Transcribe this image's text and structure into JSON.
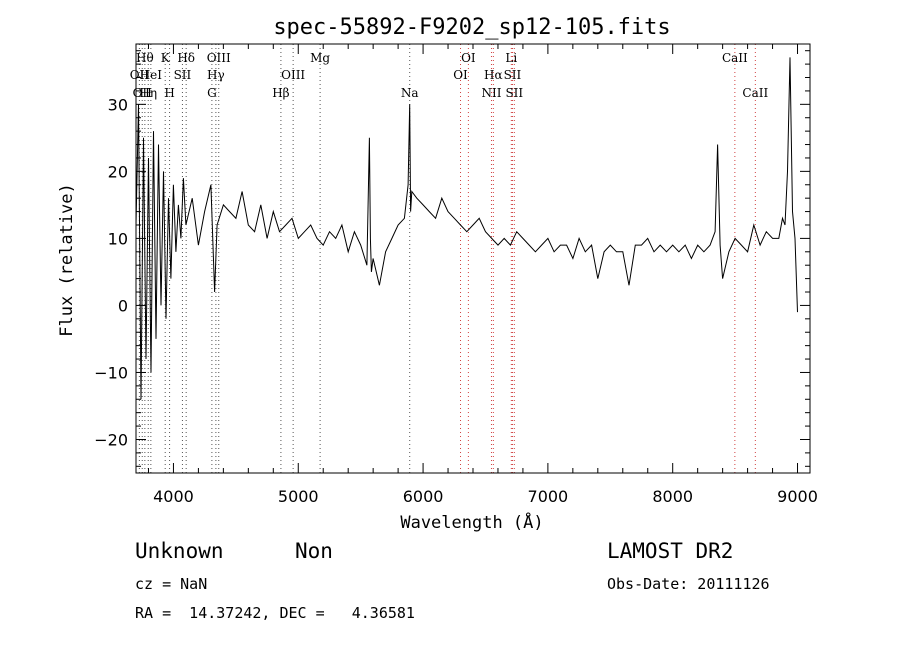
{
  "chart_data": {
    "type": "line",
    "title": "spec-55892-F9202_sp12-105.fits",
    "xlabel": "Wavelength (Å)",
    "ylabel": "Flux (relative)",
    "xlim": [
      3700,
      9100
    ],
    "ylim": [
      -25,
      39
    ],
    "x_ticks": [
      4000,
      5000,
      6000,
      7000,
      8000,
      9000
    ],
    "y_ticks": [
      -20,
      -10,
      0,
      10,
      20,
      30
    ],
    "grid": false,
    "series": [
      {
        "x": [
          3700,
          3720,
          3740,
          3760,
          3780,
          3800,
          3820,
          3840,
          3860,
          3880,
          3900,
          3920,
          3940,
          3960,
          3980,
          4000,
          4020,
          4040,
          4060,
          4080,
          4100,
          4150,
          4200,
          4250,
          4300,
          4330,
          4350,
          4400,
          4450,
          4500,
          4550,
          4600,
          4650,
          4700,
          4750,
          4800,
          4850,
          4900,
          4950,
          5000,
          5050,
          5100,
          5150,
          5200,
          5250,
          5300,
          5350,
          5400,
          5450,
          5500,
          5550,
          5570,
          5578,
          5586,
          5600,
          5650,
          5700,
          5750,
          5800,
          5850,
          5880,
          5893,
          5900,
          5910,
          5950,
          6000,
          6050,
          6100,
          6150,
          6200,
          6250,
          6300,
          6350,
          6400,
          6450,
          6500,
          6550,
          6600,
          6650,
          6700,
          6750,
          6800,
          6850,
          6900,
          6950,
          7000,
          7050,
          7100,
          7150,
          7200,
          7250,
          7300,
          7350,
          7400,
          7450,
          7500,
          7550,
          7600,
          7650,
          7700,
          7750,
          7800,
          7850,
          7900,
          7950,
          8000,
          8050,
          8100,
          8150,
          8200,
          8250,
          8300,
          8340,
          8360,
          8380,
          8400,
          8450,
          8500,
          8550,
          8600,
          8650,
          8700,
          8750,
          8800,
          8850,
          8880,
          8900,
          8920,
          8940,
          8960,
          8980,
          9000
        ],
        "y": [
          12,
          30,
          -14,
          25,
          -8,
          22,
          -10,
          26,
          -5,
          24,
          0,
          20,
          -2,
          16,
          4,
          18,
          8,
          15,
          10,
          19,
          12,
          16,
          9,
          14,
          18,
          2,
          12,
          15,
          14,
          13,
          17,
          12,
          11,
          15,
          10,
          14,
          11,
          12,
          13,
          10,
          11,
          12,
          10,
          9,
          11,
          10,
          12,
          8,
          11,
          9,
          6,
          25,
          10,
          5,
          7,
          3,
          8,
          10,
          12,
          13,
          18,
          30,
          14,
          17,
          16,
          15,
          14,
          13,
          16,
          14,
          13,
          12,
          11,
          12,
          13,
          11,
          10,
          9,
          10,
          9,
          11,
          10,
          9,
          8,
          9,
          10,
          8,
          9,
          9,
          7,
          10,
          8,
          9,
          4,
          8,
          9,
          8,
          8,
          3,
          9,
          9,
          10,
          8,
          9,
          8,
          9,
          8,
          9,
          7,
          9,
          8,
          9,
          11,
          24,
          9,
          4,
          8,
          10,
          9,
          8,
          12,
          9,
          11,
          10,
          10,
          13,
          12,
          20,
          37,
          14,
          10,
          -1
        ]
      }
    ],
    "lines": [
      {
        "x": 3727,
        "label": "OII",
        "row": 2
      },
      {
        "x": 3750,
        "label": "OII",
        "row": 3
      },
      {
        "x": 3771,
        "label": "Hθ",
        "row": 1
      },
      {
        "x": 3798,
        "label": "Hη",
        "row": 3
      },
      {
        "x": 3819,
        "label": "HeI",
        "row": 2
      },
      {
        "x": 3934,
        "label": "K",
        "row": 1
      },
      {
        "x": 3969,
        "label": "H",
        "row": 3
      },
      {
        "x": 4072,
        "label": "SII",
        "row": 2
      },
      {
        "x": 4102,
        "label": "Hδ",
        "row": 1
      },
      {
        "x": 4308,
        "label": "G",
        "row": 3
      },
      {
        "x": 4340,
        "label": "Hγ",
        "row": 2
      },
      {
        "x": 4363,
        "label": "OIII",
        "row": 1
      },
      {
        "x": 4861,
        "label": "Hβ",
        "row": 3
      },
      {
        "x": 4959,
        "label": "OIII",
        "row": 2
      },
      {
        "x": 5175,
        "label": "Mg",
        "row": 1
      },
      {
        "x": 5893,
        "label": "Na",
        "row": 3
      },
      {
        "x": 6300,
        "label": "OI",
        "row": 2
      },
      {
        "x": 6363,
        "label": "OI",
        "row": 1
      },
      {
        "x": 6548,
        "label": "NII",
        "row": 3
      },
      {
        "x": 6563,
        "label": "Hα",
        "row": 2
      },
      {
        "x": 6707,
        "label": "Li",
        "row": 1
      },
      {
        "x": 6716,
        "label": "SII",
        "row": 2
      },
      {
        "x": 6731,
        "label": "SII",
        "row": 3
      },
      {
        "x": 8498,
        "label": "CaII",
        "row": 1
      },
      {
        "x": 8662,
        "label": "CaII",
        "row": 3
      }
    ]
  },
  "footer": {
    "class": "Unknown",
    "subclass": "Non",
    "survey": "LAMOST DR2",
    "cz": "cz = NaN",
    "obs_date": "Obs-Date: 20111126",
    "coords": "RA =  14.37242, DEC =   4.36581"
  }
}
